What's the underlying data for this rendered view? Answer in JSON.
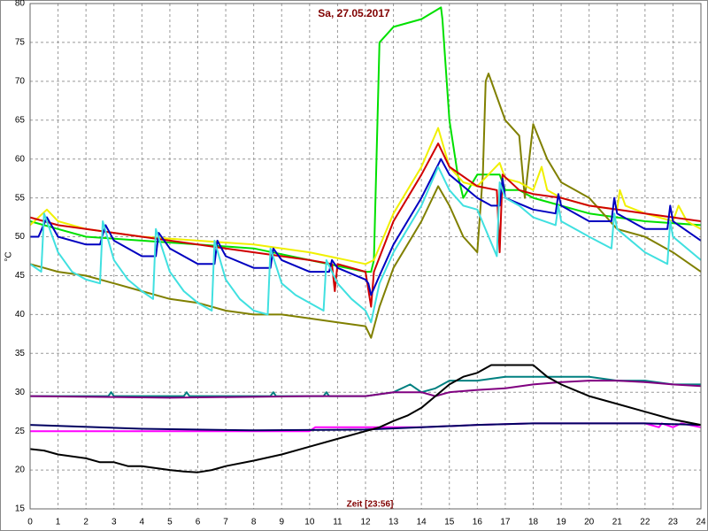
{
  "chart_data": {
    "type": "line",
    "title": "Sa, 27.05.2017",
    "xlabel": "Zeit [23:56]",
    "ylabel": "°C",
    "xlim": [
      0,
      24
    ],
    "ylim": [
      15,
      80
    ],
    "xticks": [
      0,
      1,
      2,
      3,
      4,
      5,
      6,
      7,
      8,
      9,
      10,
      11,
      12,
      13,
      14,
      15,
      16,
      17,
      18,
      19,
      20,
      21,
      22,
      23,
      24
    ],
    "yticks": [
      15,
      20,
      25,
      30,
      35,
      40,
      45,
      50,
      55,
      60,
      65,
      70,
      75,
      80
    ],
    "grid": true,
    "series": [
      {
        "color": "#00e000",
        "x": [
          0,
          1,
          2,
          4,
          6,
          8,
          10,
          12,
          12.2,
          12.3,
          12.5,
          13,
          14,
          14.7,
          14.75,
          15,
          15.3,
          15.5,
          16,
          16.8,
          17,
          17.5,
          18,
          19,
          20,
          22,
          24
        ],
        "values": [
          52,
          51,
          50,
          49.5,
          49,
          48.5,
          47,
          45.5,
          45.5,
          47,
          75,
          77,
          78,
          79.5,
          78,
          65,
          58,
          55,
          58,
          58,
          56,
          56,
          55,
          54,
          53,
          52,
          51.5
        ]
      },
      {
        "color": "#808000",
        "x": [
          0,
          0.5,
          1,
          2,
          3,
          4,
          5,
          6,
          7,
          8,
          9,
          10,
          11,
          12,
          12.2,
          12.5,
          13,
          14,
          14.6,
          15,
          15.5,
          16,
          16.2,
          16.3,
          16.4,
          17,
          17.5,
          17.7,
          18,
          18.5,
          19,
          19.5,
          20,
          20.5,
          21,
          22,
          23,
          24
        ],
        "values": [
          46.5,
          46,
          45.5,
          45,
          44,
          43,
          42,
          41.5,
          40.5,
          40,
          40,
          39.5,
          39,
          38.5,
          37,
          41,
          46,
          52,
          56.5,
          54,
          50,
          48,
          58,
          70,
          71,
          65,
          63,
          55,
          64.5,
          60,
          57,
          56,
          55,
          53,
          51,
          50,
          48,
          45.5
        ]
      },
      {
        "color": "#f0f000",
        "x": [
          0,
          0.6,
          1,
          2,
          3,
          4,
          6,
          8,
          10,
          12,
          12.3,
          13,
          14,
          14.6,
          15,
          15.5,
          16,
          16.8,
          17,
          17.5,
          18,
          18.3,
          18.5,
          19,
          20,
          21,
          21.1,
          21.3,
          22,
          23,
          23.2,
          23.5,
          24
        ],
        "values": [
          51.5,
          53.5,
          52,
          51,
          50.5,
          50,
          49.5,
          49,
          48,
          46.5,
          47,
          53,
          59,
          64,
          59,
          57,
          56.5,
          59.5,
          57.5,
          57,
          56,
          59,
          56,
          55,
          54,
          53.5,
          56,
          54,
          53,
          52,
          54,
          52,
          51
        ]
      },
      {
        "color": "#d00000",
        "x": [
          0,
          1,
          2,
          3,
          4,
          5,
          6,
          7,
          8,
          9,
          10,
          10.8,
          10.9,
          11,
          12,
          12.2,
          12.3,
          13,
          14,
          14.6,
          15,
          16,
          16.7,
          16.8,
          16.9,
          17.5,
          18,
          19,
          20,
          21,
          22,
          23,
          24
        ],
        "values": [
          52.5,
          51.5,
          51,
          50.5,
          50,
          49.5,
          49,
          48.5,
          48,
          47.5,
          47,
          46.5,
          43,
          46.5,
          45.5,
          41,
          45.5,
          52,
          58,
          62,
          59,
          56.5,
          56,
          48,
          58,
          56,
          55.5,
          55,
          54,
          53.5,
          53,
          52.5,
          52
        ]
      },
      {
        "color": "#0000c0",
        "x": [
          0,
          0.3,
          0.6,
          1,
          2,
          2.5,
          2.7,
          3,
          4,
          4.5,
          4.6,
          5,
          6,
          6.6,
          6.7,
          7,
          8,
          8.6,
          8.7,
          9,
          10,
          10.7,
          10.8,
          11,
          12,
          12.1,
          12.2,
          12.5,
          13,
          14,
          14.7,
          15,
          16,
          16.5,
          16.8,
          16.9,
          17,
          18,
          18.8,
          18.9,
          19,
          20,
          20.8,
          20.9,
          21,
          22,
          22.8,
          22.9,
          23,
          24
        ],
        "values": [
          50,
          50,
          52.5,
          50,
          49,
          49,
          51.5,
          49.5,
          47.5,
          47.5,
          50.5,
          48.5,
          46.5,
          46.5,
          49.5,
          47.5,
          46,
          46,
          48.5,
          47,
          45.5,
          45.5,
          47,
          46,
          44.5,
          44,
          42.5,
          45,
          49,
          55,
          60,
          58,
          55,
          54,
          54,
          57.5,
          55,
          53.5,
          53,
          55.5,
          54,
          52,
          52,
          55,
          53,
          51,
          51,
          54,
          52,
          49.5
        ]
      },
      {
        "color": "#40e0e0",
        "x": [
          0,
          0.4,
          0.5,
          1,
          1.5,
          2,
          2.5,
          2.6,
          3,
          3.5,
          4,
          4.4,
          4.5,
          5,
          5.5,
          6,
          6.5,
          6.6,
          7,
          7.5,
          8,
          8.5,
          8.6,
          9,
          9.5,
          10,
          10.5,
          10.6,
          11,
          11.5,
          12,
          12.2,
          12.5,
          13,
          14,
          14.6,
          15,
          15.5,
          16,
          16.7,
          16.8,
          17,
          17.5,
          18,
          18.8,
          18.9,
          19,
          20,
          20.8,
          20.9,
          21,
          22,
          22.8,
          22.9,
          23,
          24
        ],
        "values": [
          46.5,
          45.5,
          53,
          48,
          45.5,
          44.5,
          44,
          52,
          47,
          44.5,
          43,
          42,
          51,
          45.5,
          43,
          41.5,
          40.5,
          49.5,
          44.5,
          42,
          40.5,
          40,
          48.5,
          44,
          42.5,
          41.5,
          40.5,
          47,
          44,
          42,
          40.5,
          39,
          44,
          48,
          54,
          59,
          56,
          54,
          53.5,
          47.5,
          57,
          55,
          54,
          52.5,
          51.5,
          54,
          52,
          50,
          48.5,
          53,
          51,
          48,
          46.5,
          52,
          50,
          47
        ]
      },
      {
        "color": "#008080",
        "x": [
          0,
          2.8,
          2.9,
          3,
          5.5,
          5.6,
          5.7,
          8.6,
          8.7,
          8.8,
          10.5,
          10.6,
          10.7,
          12,
          13,
          13.6,
          14,
          14.5,
          15,
          16,
          17,
          18,
          19,
          20,
          21,
          22,
          23,
          24
        ],
        "values": [
          29.5,
          29.5,
          30,
          29.5,
          29.5,
          30,
          29.5,
          29.5,
          30,
          29.5,
          29.5,
          30,
          29.5,
          29.5,
          30,
          31,
          30,
          30.5,
          31.5,
          31.5,
          32,
          32,
          32,
          32,
          31.5,
          31.5,
          31,
          31
        ]
      },
      {
        "color": "#800080",
        "x": [
          0,
          5,
          10,
          12,
          13,
          14,
          14.5,
          15,
          16,
          17,
          18,
          19,
          20,
          21,
          22,
          23,
          24
        ],
        "values": [
          29.5,
          29.3,
          29.5,
          29.5,
          30,
          30,
          29.5,
          30,
          30.3,
          30.5,
          31,
          31.3,
          31.5,
          31.5,
          31.3,
          31,
          30.8
        ]
      },
      {
        "color": "#ff00ff",
        "x": [
          0,
          8,
          10,
          10.2,
          12,
          14,
          16,
          18,
          20,
          22,
          22.5,
          22.6,
          23,
          23.3,
          24
        ],
        "values": [
          25,
          25,
          25,
          25.5,
          25.5,
          25.5,
          25.8,
          26,
          26,
          26,
          25.5,
          26,
          25.5,
          26,
          25.5
        ]
      },
      {
        "color": "#000060",
        "x": [
          0,
          4,
          8,
          12,
          14,
          16,
          18,
          20,
          22,
          24
        ],
        "values": [
          25.8,
          25.3,
          25.1,
          25.2,
          25.5,
          25.8,
          26,
          26,
          26,
          25.8
        ]
      },
      {
        "color": "#000000",
        "x": [
          0,
          0.5,
          1,
          2,
          2.5,
          3,
          3.5,
          4,
          5,
          5.5,
          6,
          6.5,
          7,
          8,
          9,
          10,
          11,
          12,
          12.5,
          13,
          13.5,
          14,
          14.5,
          15,
          15.5,
          16,
          16.5,
          17,
          17.5,
          18,
          18.5,
          19,
          20,
          21,
          22,
          23,
          24
        ],
        "values": [
          22.7,
          22.5,
          22,
          21.5,
          21,
          21,
          20.5,
          20.5,
          20,
          19.8,
          19.7,
          20,
          20.5,
          21.2,
          22,
          23,
          24,
          25,
          25.5,
          26.3,
          27,
          28,
          29.5,
          31,
          32,
          32.5,
          33.5,
          33.5,
          33.5,
          33.5,
          32,
          31,
          29.5,
          28.5,
          27.5,
          26.5,
          25.8
        ]
      }
    ]
  }
}
